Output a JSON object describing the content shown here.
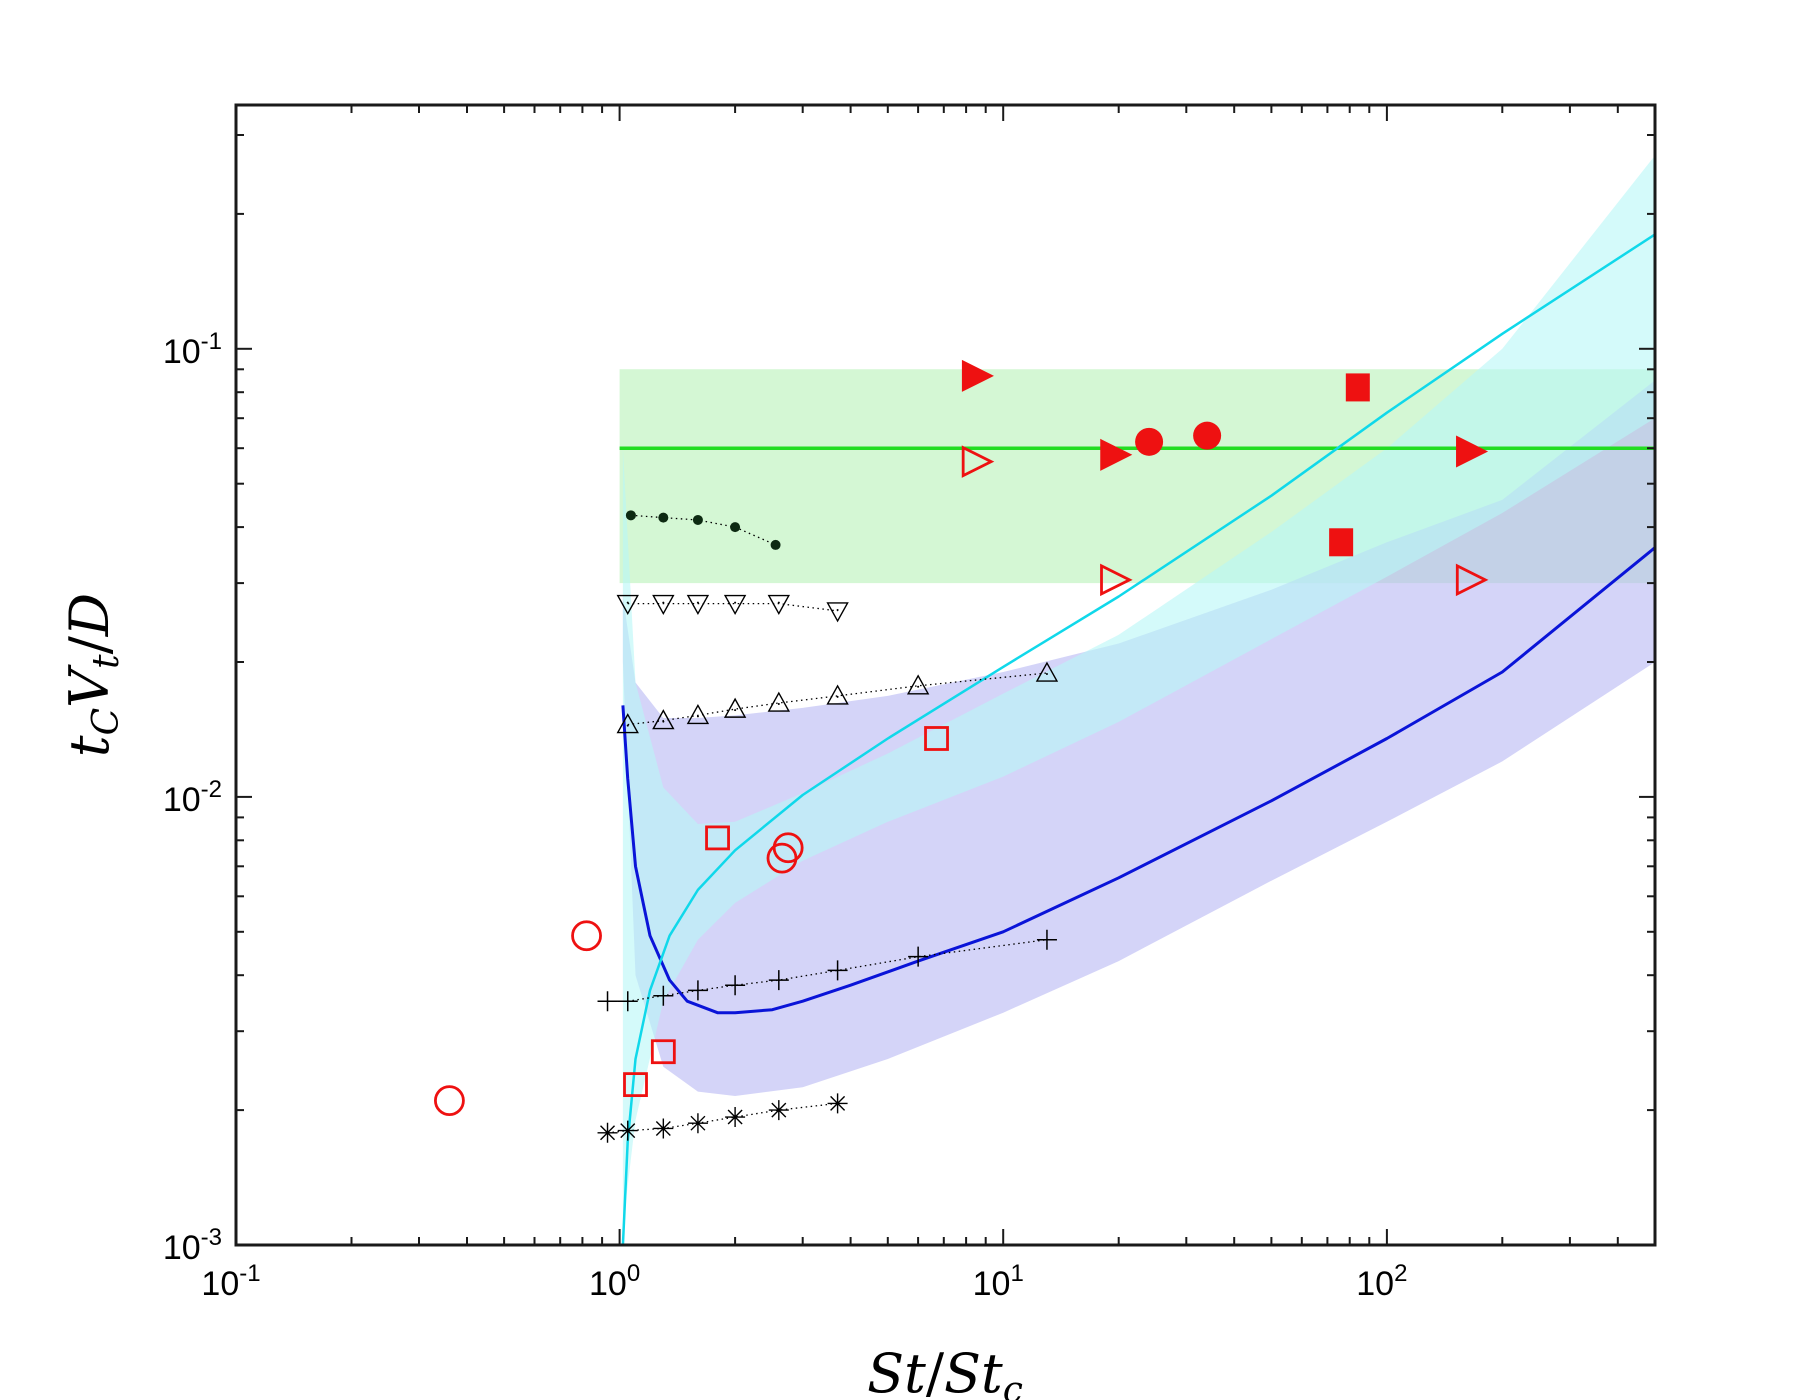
{
  "chart_data": {
    "type": "scatter",
    "title": "",
    "xscale": "log",
    "yscale": "log",
    "xlim": [
      0.1,
      500
    ],
    "ylim": [
      0.001,
      0.35
    ],
    "xlabel_parts": [
      {
        "text": "St",
        "style": "italic",
        "sub": false
      },
      {
        "text": "/",
        "style": "normal",
        "sub": false
      },
      {
        "text": "St",
        "style": "italic",
        "sub": false
      },
      {
        "text": "c",
        "style": "italic",
        "sub": true
      }
    ],
    "ylabel_parts": [
      {
        "text": "t",
        "style": "italic",
        "sub": false
      },
      {
        "text": "C",
        "style": "italic",
        "sub": true
      },
      {
        "text": "V",
        "style": "italic",
        "sub": false
      },
      {
        "text": "t",
        "style": "italic",
        "sub": true
      },
      {
        "text": "/",
        "style": "normal",
        "sub": false
      },
      {
        "text": "D",
        "style": "italic",
        "sub": false
      }
    ],
    "xticks": [
      {
        "value": 0.1,
        "base": "10",
        "exp": "-1"
      },
      {
        "value": 1,
        "base": "10",
        "exp": "0"
      },
      {
        "value": 10,
        "base": "10",
        "exp": "1"
      },
      {
        "value": 100,
        "base": "10",
        "exp": "2"
      }
    ],
    "yticks": [
      {
        "value": 0.001,
        "base": "10",
        "exp": "-3"
      },
      {
        "value": 0.01,
        "base": "10",
        "exp": "-2"
      },
      {
        "value": 0.1,
        "base": "10",
        "exp": "-1"
      }
    ],
    "bands": [
      {
        "name": "green-band",
        "color": "#b8f2b8",
        "opacity": 0.6,
        "x": [
          1.0,
          500
        ],
        "lower": [
          0.03,
          0.03
        ],
        "upper": [
          0.09,
          0.09
        ]
      },
      {
        "name": "purple-band",
        "color": "#b8b8f4",
        "opacity": 0.6,
        "x": [
          1.02,
          1.1,
          1.3,
          1.6,
          2,
          3,
          5,
          10,
          20,
          50,
          100,
          200,
          500
        ],
        "lower": [
          0.02,
          0.004,
          0.0025,
          0.0022,
          0.00215,
          0.00225,
          0.0026,
          0.0033,
          0.0043,
          0.0065,
          0.0088,
          0.012,
          0.02
        ],
        "upper": [
          0.028,
          0.018,
          0.015,
          0.015,
          0.0152,
          0.0158,
          0.0168,
          0.019,
          0.022,
          0.029,
          0.037,
          0.046,
          0.085
        ]
      },
      {
        "name": "cyan-band",
        "color": "#b8f6f6",
        "opacity": 0.6,
        "x": [
          1.02,
          1.1,
          1.3,
          1.6,
          2,
          3,
          5,
          10,
          20,
          50,
          100,
          200,
          500
        ],
        "lower": [
          0.0011,
          0.0019,
          0.0035,
          0.0048,
          0.0058,
          0.0072,
          0.0088,
          0.0111,
          0.0147,
          0.0225,
          0.031,
          0.043,
          0.07
        ],
        "upper": [
          0.06,
          0.018,
          0.0105,
          0.0087,
          0.0088,
          0.0102,
          0.0125,
          0.017,
          0.023,
          0.039,
          0.06,
          0.1,
          0.27
        ]
      }
    ],
    "curves": [
      {
        "name": "green-line",
        "color": "#22dd22",
        "width": 3.5,
        "x": [
          1.0,
          500
        ],
        "y": [
          0.06,
          0.06
        ]
      },
      {
        "name": "blue-curve",
        "color": "#0a14d8",
        "width": 3,
        "x": [
          1.02,
          1.05,
          1.1,
          1.2,
          1.35,
          1.5,
          1.8,
          2,
          2.5,
          3,
          4,
          6,
          10,
          20,
          50,
          100,
          200,
          500
        ],
        "y": [
          0.016,
          0.011,
          0.007,
          0.0049,
          0.0039,
          0.0035,
          0.0033,
          0.0033,
          0.00335,
          0.0035,
          0.0038,
          0.0043,
          0.005,
          0.0066,
          0.0098,
          0.0135,
          0.019,
          0.036
        ]
      },
      {
        "name": "cyan-curve",
        "color": "#10d8ea",
        "width": 2.5,
        "x": [
          1.02,
          1.05,
          1.1,
          1.2,
          1.35,
          1.6,
          2,
          3,
          5,
          10,
          20,
          50,
          100,
          200,
          500
        ],
        "y": [
          0.001,
          0.0017,
          0.0026,
          0.0037,
          0.0049,
          0.0062,
          0.0076,
          0.0101,
          0.0135,
          0.0195,
          0.028,
          0.047,
          0.072,
          0.108,
          0.18
        ]
      }
    ],
    "series": [
      {
        "name": "dot-series",
        "marker": "dot",
        "color": "#0d2a12",
        "line": true,
        "x": [
          1.07,
          1.3,
          1.6,
          2.0,
          2.55
        ],
        "y": [
          0.0425,
          0.042,
          0.0415,
          0.04,
          0.0365
        ]
      },
      {
        "name": "triangle-down-series",
        "marker": "triangle-down",
        "color": "#000000",
        "line": true,
        "x": [
          1.05,
          1.3,
          1.6,
          2.0,
          2.6,
          3.7
        ],
        "y": [
          0.027,
          0.027,
          0.027,
          0.027,
          0.027,
          0.026
        ]
      },
      {
        "name": "triangle-up-series",
        "marker": "triangle-up",
        "color": "#000000",
        "line": true,
        "x": [
          1.05,
          1.3,
          1.6,
          2.0,
          2.6,
          3.7,
          6.0,
          13.0
        ],
        "y": [
          0.0145,
          0.0148,
          0.0152,
          0.0157,
          0.0162,
          0.0168,
          0.0177,
          0.0189
        ]
      },
      {
        "name": "plus-series",
        "marker": "plus",
        "color": "#000000",
        "line": true,
        "x": [
          0.93,
          1.05,
          1.3,
          1.6,
          2.0,
          2.6,
          3.7,
          6.0,
          13.0
        ],
        "y": [
          0.0035,
          0.0035,
          0.0036,
          0.0037,
          0.0038,
          0.0039,
          0.0041,
          0.0044,
          0.0048
        ]
      },
      {
        "name": "star-series",
        "marker": "asterisk",
        "color": "#000000",
        "line": true,
        "x": [
          0.93,
          1.05,
          1.3,
          1.6,
          2.0,
          2.6,
          3.7
        ],
        "y": [
          0.00178,
          0.0018,
          0.00182,
          0.00187,
          0.00193,
          0.002,
          0.00207
        ]
      },
      {
        "name": "open-circle-series",
        "marker": "circle-open",
        "color": "#ee1111",
        "line": false,
        "x": [
          0.36,
          0.82,
          2.65,
          2.75
        ],
        "y": [
          0.0021,
          0.0049,
          0.0073,
          0.0077
        ]
      },
      {
        "name": "open-square-series",
        "marker": "square-open",
        "color": "#ee1111",
        "line": false,
        "x": [
          1.1,
          1.3,
          1.8,
          6.7
        ],
        "y": [
          0.00228,
          0.0027,
          0.0081,
          0.0135
        ]
      },
      {
        "name": "open-triangle-right-series",
        "marker": "triangle-right-open",
        "color": "#ee1111",
        "line": false,
        "x": [
          8.5,
          19.5,
          165
        ],
        "y": [
          0.056,
          0.0305,
          0.0305
        ]
      },
      {
        "name": "filled-triangle-right-series",
        "marker": "triangle-right-filled",
        "color": "#ee1111",
        "line": false,
        "x": [
          8.5,
          19.5,
          165
        ],
        "y": [
          0.087,
          0.058,
          0.059
        ]
      },
      {
        "name": "filled-circle-series",
        "marker": "circle-filled",
        "color": "#ee1111",
        "line": false,
        "x": [
          24,
          34
        ],
        "y": [
          0.062,
          0.064
        ]
      },
      {
        "name": "filled-square-series",
        "marker": "square-filled",
        "color": "#ee1111",
        "line": false,
        "x": [
          76,
          84
        ],
        "y": [
          0.037,
          0.082
        ]
      }
    ]
  }
}
